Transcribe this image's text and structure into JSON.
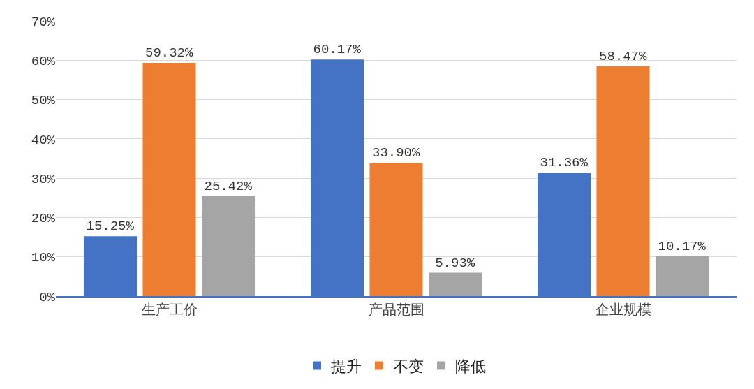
{
  "chart_data": {
    "type": "bar",
    "categories": [
      "生产工价",
      "产品范围",
      "企业规模"
    ],
    "series": [
      {
        "name": "提升",
        "color": "#4472c4",
        "values": [
          15.25,
          60.17,
          31.36
        ],
        "value_labels": [
          "15.25%",
          "60.17%",
          "31.36%"
        ]
      },
      {
        "name": "不变",
        "color": "#ed7d31",
        "values": [
          59.32,
          33.9,
          58.47
        ],
        "value_labels": [
          "59.32%",
          "33.90%",
          "58.47%"
        ]
      },
      {
        "name": "降低",
        "color": "#a5a5a5",
        "values": [
          25.42,
          5.93,
          10.17
        ],
        "value_labels": [
          "25.42%",
          "5.93%",
          "10.17%"
        ]
      }
    ],
    "ylim": [
      0,
      70
    ],
    "yticks": [
      {
        "value": 0,
        "label": "0%"
      },
      {
        "value": 10,
        "label": "10%"
      },
      {
        "value": 20,
        "label": "20%"
      },
      {
        "value": 30,
        "label": "30%"
      },
      {
        "value": 40,
        "label": "40%"
      },
      {
        "value": 50,
        "label": "50%"
      },
      {
        "value": 60,
        "label": "60%"
      },
      {
        "value": 70,
        "label": "70%"
      }
    ],
    "grid": "y",
    "legend": "bottom"
  }
}
